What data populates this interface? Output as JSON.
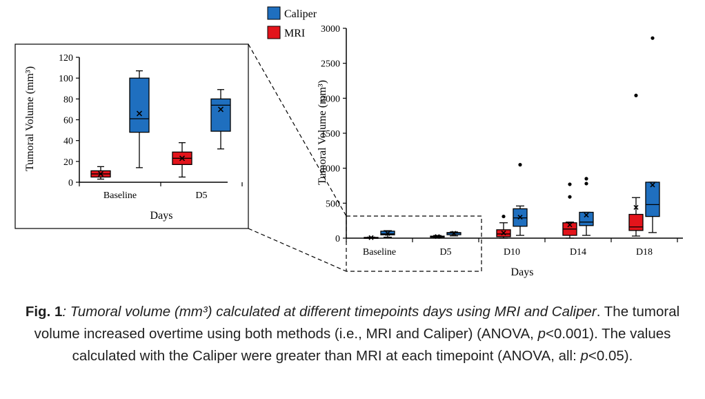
{
  "colors": {
    "caliper": "#1f6fbf",
    "mri": "#e3141b",
    "axis": "#000000"
  },
  "chart_data": [
    {
      "type": "box",
      "xlabel": "Days",
      "ylabel": "Tumoral Volume (mm³)",
      "categories": [
        "Baseline",
        "D5",
        "D10",
        "D14",
        "D18"
      ],
      "ylim": [
        0,
        3000
      ],
      "yticks": [
        0,
        500,
        1000,
        1500,
        2000,
        2500,
        3000
      ],
      "legend": {
        "position": "top-left",
        "entries": [
          "Caliper",
          "MRI"
        ]
      },
      "series": [
        {
          "name": "MRI",
          "boxes": [
            {
              "min": 3,
              "q1": 5,
              "median": 8,
              "q3": 11,
              "max": 15,
              "mean": 8,
              "outliers": []
            },
            {
              "min": 5,
              "q1": 17,
              "median": 23,
              "q3": 29,
              "max": 38,
              "mean": 23,
              "outliers": []
            },
            {
              "min": 0,
              "q1": 20,
              "median": 60,
              "q3": 120,
              "max": 220,
              "mean": 75,
              "outliers": [
                310
              ]
            },
            {
              "min": 0,
              "q1": 40,
              "median": 130,
              "q3": 220,
              "max": 230,
              "mean": 190,
              "outliers": [
                590,
                770
              ]
            },
            {
              "min": 30,
              "q1": 110,
              "median": 160,
              "q3": 340,
              "max": 580,
              "mean": 440,
              "outliers": [
                2040
              ]
            }
          ]
        },
        {
          "name": "Caliper",
          "boxes": [
            {
              "min": 14,
              "q1": 48,
              "median": 61,
              "q3": 100,
              "max": 107,
              "mean": 66,
              "outliers": []
            },
            {
              "min": 32,
              "q1": 49,
              "median": 74,
              "q3": 80,
              "max": 89,
              "mean": 70,
              "outliers": []
            },
            {
              "min": 40,
              "q1": 170,
              "median": 290,
              "q3": 420,
              "max": 460,
              "mean": 300,
              "outliers": [
                1050
              ]
            },
            {
              "min": 40,
              "q1": 180,
              "median": 230,
              "q3": 370,
              "max": 370,
              "mean": 330,
              "outliers": [
                780,
                850
              ]
            },
            {
              "min": 80,
              "q1": 310,
              "median": 480,
              "q3": 800,
              "max": 800,
              "mean": 760,
              "outliers": [
                2860
              ]
            }
          ]
        }
      ]
    },
    {
      "type": "box",
      "xlabel": "Days",
      "ylabel": "Tumoral Volume (mm³)",
      "categories": [
        "Baseline",
        "D5"
      ],
      "ylim": [
        0,
        120
      ],
      "yticks": [
        0,
        20,
        40,
        60,
        80,
        100,
        120
      ],
      "series": [
        {
          "name": "MRI",
          "boxes": [
            {
              "min": 3,
              "q1": 5,
              "median": 8,
              "q3": 11,
              "max": 15,
              "mean": 8,
              "outliers": []
            },
            {
              "min": 5,
              "q1": 17,
              "median": 23,
              "q3": 29,
              "max": 38,
              "mean": 23,
              "outliers": []
            }
          ]
        },
        {
          "name": "Caliper",
          "boxes": [
            {
              "min": 14,
              "q1": 48,
              "median": 61,
              "q3": 100,
              "max": 107,
              "mean": 66,
              "outliers": []
            },
            {
              "min": 32,
              "q1": 49,
              "median": 74,
              "q3": 80,
              "max": 89,
              "mean": 70,
              "outliers": []
            }
          ]
        }
      ]
    }
  ],
  "caption": {
    "fig_label": "Fig. 1",
    "title_italic": ": Tumoral volume (mm³) calculated at different timepoints days using MRI and Caliper",
    "text_1": ". The tumoral volume increased overtime using both methods (i.e., MRI and Caliper) (ANOVA, ",
    "p1": "p",
    "text_2": "<0.001). The values calculated with the Caliper were greater than MRI at each timepoint (ANOVA, all: ",
    "p2": "p",
    "text_3": "<0.05)."
  }
}
